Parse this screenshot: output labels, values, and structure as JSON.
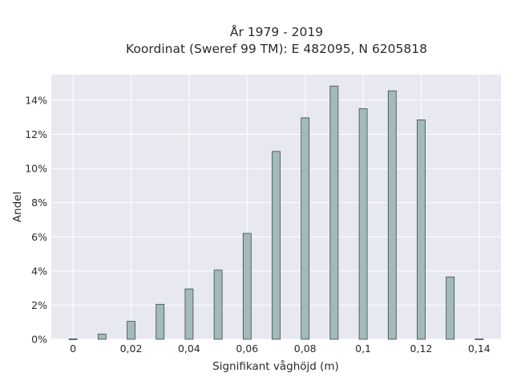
{
  "chart_data": {
    "type": "bar",
    "title_lines": [
      "År 1979 - 2019",
      "Koordinat (Sweref 99 TM): E 482095, N 6205818"
    ],
    "xlabel": "Signifikant våghöjd (m)",
    "ylabel": "Andel",
    "x": [
      0,
      0.01,
      0.02,
      0.03,
      0.04,
      0.05,
      0.06,
      0.07,
      0.08,
      0.09,
      0.1,
      0.11,
      0.12,
      0.13,
      0.14
    ],
    "values": [
      0.02,
      0.3,
      1.05,
      2.05,
      2.95,
      4.05,
      6.2,
      11.0,
      12.97,
      14.83,
      13.5,
      14.55,
      12.85,
      3.65,
      0.02
    ],
    "xlim": [
      -0.0075,
      0.1475
    ],
    "ylim": [
      0,
      15.5
    ],
    "xticks": [
      0,
      0.02,
      0.04,
      0.06,
      0.08,
      0.1,
      0.12,
      0.14
    ],
    "xtick_labels": [
      "0",
      "0,02",
      "0,04",
      "0,06",
      "0,08",
      "0,1",
      "0,12",
      "0,14"
    ],
    "yticks": [
      0,
      2,
      4,
      6,
      8,
      10,
      12,
      14
    ],
    "ytick_labels": [
      "0%",
      "2%",
      "4%",
      "6%",
      "8%",
      "10%",
      "12%",
      "14%"
    ],
    "grid": true,
    "legend": "none",
    "colors": {
      "bar_fill": "#a3b9ba",
      "bar_stroke": "#3d4a4a",
      "plot_bg": "#e8e8f0",
      "grid": "#ffffff"
    }
  }
}
